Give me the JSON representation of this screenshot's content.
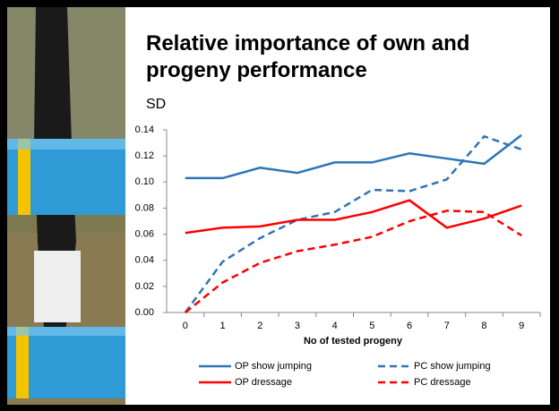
{
  "chart_data": {
    "type": "line",
    "title": "Relative importance of own and progeny performance",
    "y_label": "SD",
    "x_label": "No of tested progeny",
    "categories": [
      "0",
      "1",
      "2",
      "3",
      "4",
      "5",
      "6",
      "7",
      "8",
      "9"
    ],
    "series": [
      {
        "name": "OP show jumping",
        "color": "#2e75b6",
        "dashed": false,
        "values": [
          0.103,
          0.103,
          0.111,
          0.107,
          0.115,
          0.115,
          0.122,
          0.118,
          0.114,
          0.136
        ]
      },
      {
        "name": "PC show jumping",
        "color": "#2e75b6",
        "dashed": true,
        "values": [
          0,
          0.039,
          0.057,
          0.071,
          0.077,
          0.094,
          0.093,
          0.102,
          0.135,
          0.125
        ]
      },
      {
        "name": "OP dressage",
        "color": "#ff0000",
        "dashed": false,
        "values": [
          0.061,
          0.065,
          0.066,
          0.071,
          0.071,
          0.077,
          0.086,
          0.065,
          0.072,
          0.082
        ]
      },
      {
        "name": "PC dressage",
        "color": "#ff0000",
        "dashed": true,
        "values": [
          0,
          0.023,
          0.038,
          0.047,
          0.052,
          0.058,
          0.07,
          0.078,
          0.077,
          0.059
        ]
      }
    ],
    "ylim": [
      0,
      0.14
    ],
    "yticks": [
      {
        "value": 0,
        "label": "0.00"
      },
      {
        "value": 0.02,
        "label": "0.02"
      },
      {
        "value": 0.04,
        "label": "0.04"
      },
      {
        "value": 0.06,
        "label": "0.06"
      },
      {
        "value": 0.08,
        "label": "0.08"
      },
      {
        "value": 0.1,
        "label": "0.10"
      },
      {
        "value": 0.12,
        "label": "0.12"
      },
      {
        "value": 0.14,
        "label": "0.14"
      }
    ],
    "grid": false,
    "legend": "bottom"
  }
}
